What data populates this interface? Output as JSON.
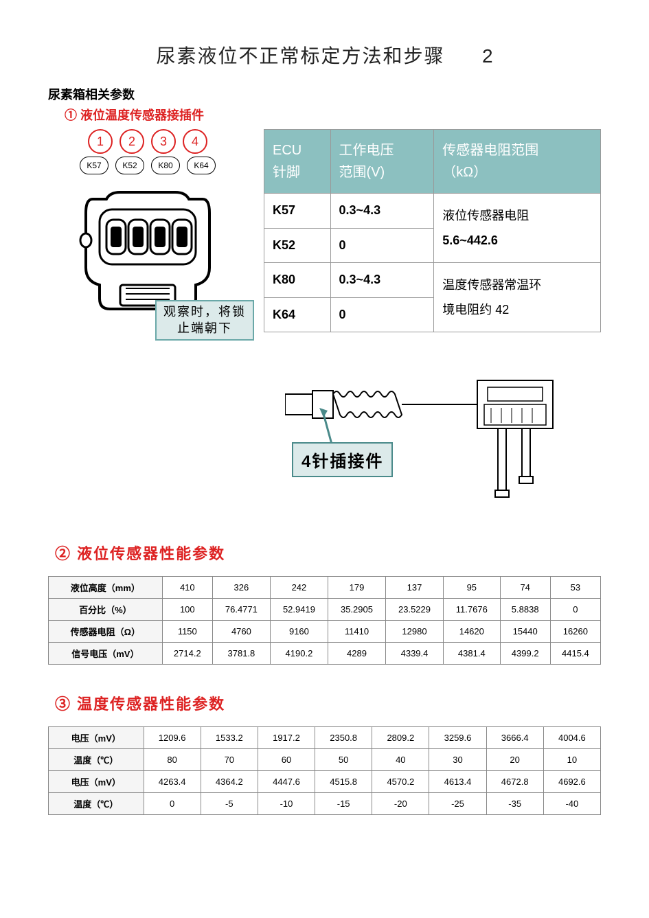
{
  "title": "尿素液位不正常标定方法和步骤",
  "page_number": "2",
  "section_label": "尿素箱相关参数",
  "sub1": "① 液位温度传感器接插件",
  "colors": {
    "accent_teal": "#8cc0c0",
    "accent_red": "#d22222",
    "callout_bg": "#dceaea",
    "callout_border": "#6aa8a8",
    "border_gray": "#999999"
  },
  "red_pins": [
    "1",
    "2",
    "3",
    "4"
  ],
  "k_pins": [
    "K57",
    "K52",
    "K80",
    "K64"
  ],
  "callout_text_l1": "观察时，将锁",
  "callout_text_l2": "止端朝下",
  "ecu_table": {
    "headers": [
      "ECU\n针脚",
      "工作电压\n范围(V)",
      "传感器电阻范围\n（kΩ）"
    ],
    "rows": [
      {
        "pin": "K57",
        "volt": "0.3~4.3"
      },
      {
        "pin": "K52",
        "volt": "0"
      },
      {
        "pin": "K80",
        "volt": "0.3~4.3"
      },
      {
        "pin": "K64",
        "volt": "0"
      }
    ],
    "desc_top_l1": "液位传感器电阻",
    "desc_top_l2": "5.6~442.6",
    "desc_bot_l1": "温度传感器常温环",
    "desc_bot_l2": "境电阻约 42"
  },
  "four_pin_label": "4针插接件",
  "sub2": "② 液位传感器性能参数",
  "level_table": {
    "row_heads": [
      "液位高度（mm）",
      "百分比（%）",
      "传感器电阻（Ω）",
      "信号电压（mV）"
    ],
    "rows": [
      [
        "410",
        "326",
        "242",
        "179",
        "137",
        "95",
        "74",
        "53"
      ],
      [
        "100",
        "76.4771",
        "52.9419",
        "35.2905",
        "23.5229",
        "11.7676",
        "5.8838",
        "0"
      ],
      [
        "1150",
        "4760",
        "9160",
        "11410",
        "12980",
        "14620",
        "15440",
        "16260"
      ],
      [
        "2714.2",
        "3781.8",
        "4190.2",
        "4289",
        "4339.4",
        "4381.4",
        "4399.2",
        "4415.4"
      ]
    ]
  },
  "sub3": "③ 温度传感器性能参数",
  "temp_table": {
    "row_heads": [
      "电压（mV）",
      "温度（℃）",
      "电压（mV）",
      "温度（℃）"
    ],
    "rows": [
      [
        "1209.6",
        "1533.2",
        "1917.2",
        "2350.8",
        "2809.2",
        "3259.6",
        "3666.4",
        "4004.6"
      ],
      [
        "80",
        "70",
        "60",
        "50",
        "40",
        "30",
        "20",
        "10"
      ],
      [
        "4263.4",
        "4364.2",
        "4447.6",
        "4515.8",
        "4570.2",
        "4613.4",
        "4672.8",
        "4692.6"
      ],
      [
        "0",
        "-5",
        "-10",
        "-15",
        "-20",
        "-25",
        "-35",
        "-40"
      ]
    ]
  }
}
